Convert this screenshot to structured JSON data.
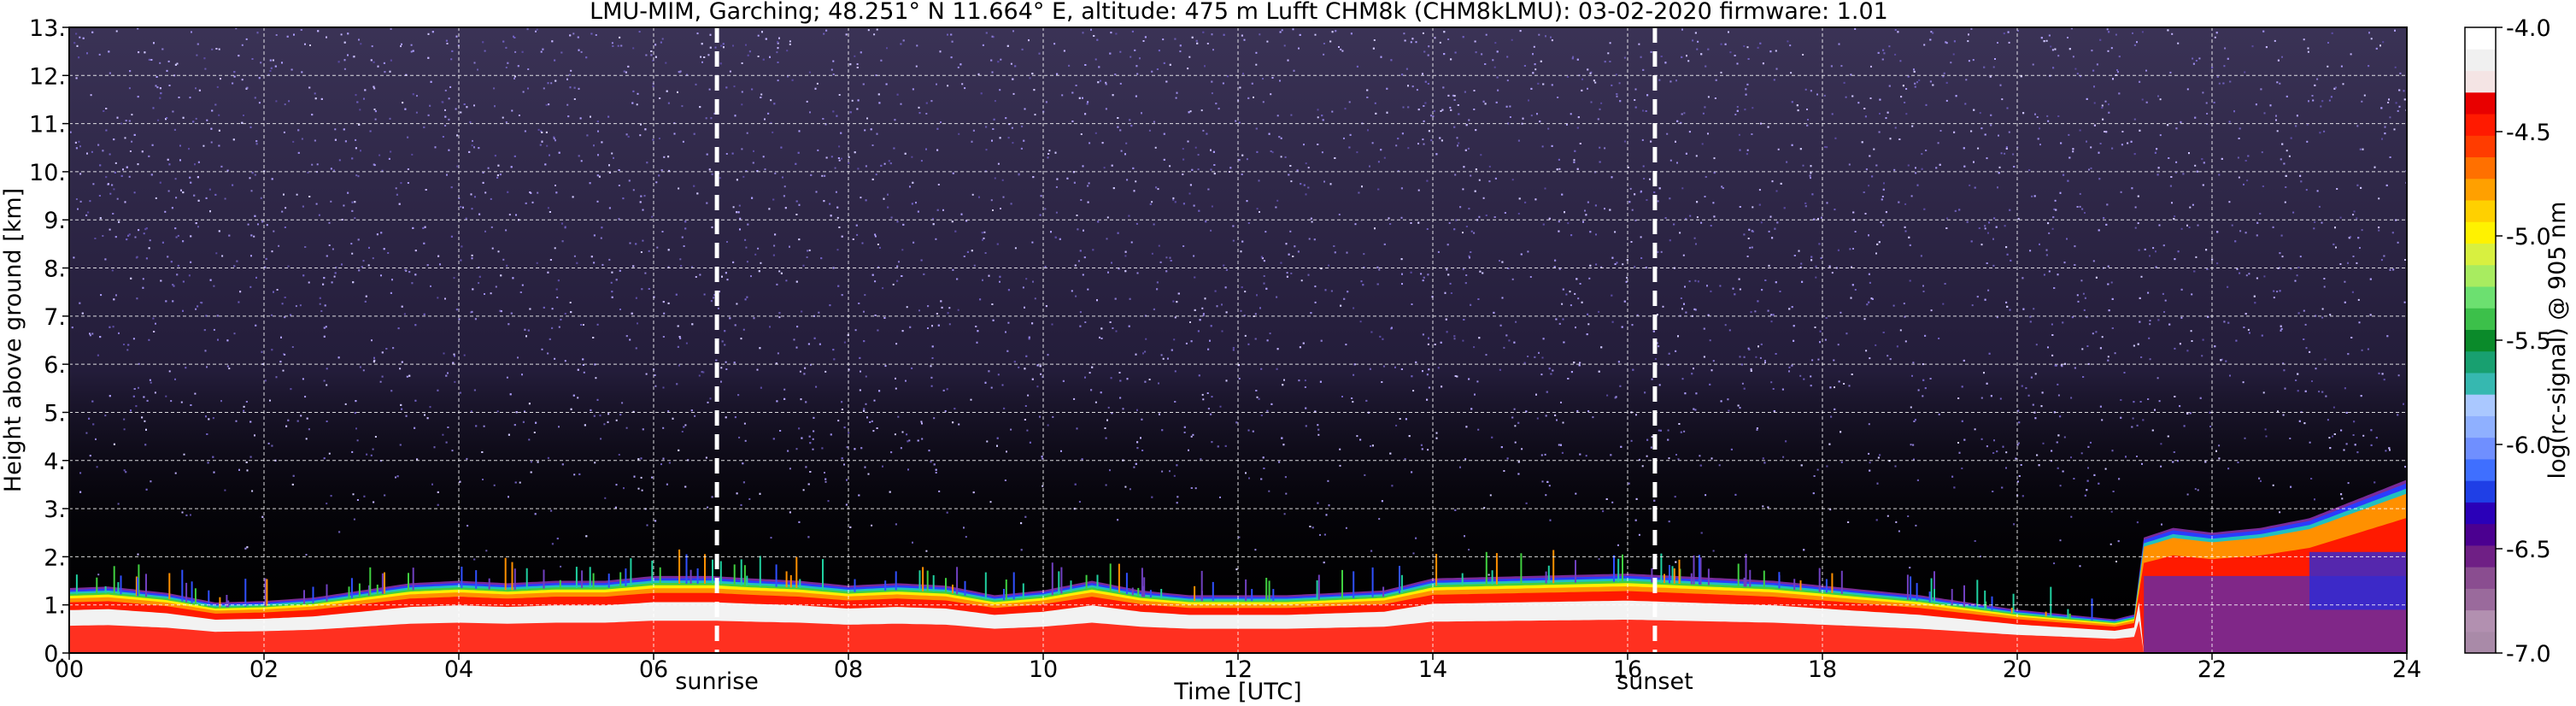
{
  "chart_data": {
    "type": "heatmap",
    "title": "LMU-MIM, Garching; 48.251° N 11.664° E, altitude: 475 m    Lufft CHM8k (CHM8kLMU): 03-02-2020    firmware: 1.01",
    "xlabel": "Time [UTC]",
    "ylabel": "Height above ground [km]",
    "xlim": [
      0,
      24
    ],
    "ylim": [
      0,
      13
    ],
    "x_ticks": [
      "00",
      "02",
      "04",
      "06",
      "08",
      "10",
      "12",
      "14",
      "16",
      "18",
      "20",
      "22",
      "24"
    ],
    "y_ticks": [
      "0.",
      "1.",
      "2.",
      "3.",
      "4.",
      "5.",
      "6.",
      "7.",
      "8.",
      "9.",
      "10.",
      "11.",
      "12.",
      "13."
    ],
    "grid": true,
    "markers": [
      {
        "label": "sunrise",
        "time": 6.65
      },
      {
        "label": "sunset",
        "time": 16.28
      }
    ],
    "colorbar": {
      "label": "log(rc-signal) @ 905 nm",
      "range": [
        -7.0,
        -4.0
      ],
      "ticks": [
        "-4.0",
        "-4.5",
        "-5.0",
        "-5.5",
        "-6.0",
        "-6.5",
        "-7.0"
      ],
      "colors": [
        "#a98aa8",
        "#b290b0",
        "#9a6a9c",
        "#8a4d90",
        "#6f1f85",
        "#4b0090",
        "#2a00b8",
        "#1f3fe6",
        "#3f6fff",
        "#6f8fff",
        "#8fb0ff",
        "#aac8ff",
        "#36b8b0",
        "#18a070",
        "#0a8a2a",
        "#3cc04a",
        "#6ce070",
        "#a8ec60",
        "#d8f040",
        "#fff200",
        "#ffd000",
        "#ffa000",
        "#ff7000",
        "#ff3c00",
        "#ff1a00",
        "#e80000",
        "#f4e4e4",
        "#f0f0f0",
        "#ffffff"
      ]
    },
    "layer_top_km": [
      {
        "t": 0.0,
        "h": 1.35
      },
      {
        "t": 0.4,
        "h": 1.38
      },
      {
        "t": 1.0,
        "h": 1.25
      },
      {
        "t": 1.5,
        "h": 1.05
      },
      {
        "t": 2.0,
        "h": 1.08
      },
      {
        "t": 2.5,
        "h": 1.15
      },
      {
        "t": 3.0,
        "h": 1.3
      },
      {
        "t": 3.5,
        "h": 1.45
      },
      {
        "t": 4.0,
        "h": 1.5
      },
      {
        "t": 4.5,
        "h": 1.45
      },
      {
        "t": 5.0,
        "h": 1.5
      },
      {
        "t": 5.5,
        "h": 1.5
      },
      {
        "t": 6.0,
        "h": 1.6
      },
      {
        "t": 6.6,
        "h": 1.6
      },
      {
        "t": 7.0,
        "h": 1.55
      },
      {
        "t": 7.5,
        "h": 1.5
      },
      {
        "t": 8.0,
        "h": 1.4
      },
      {
        "t": 8.5,
        "h": 1.45
      },
      {
        "t": 9.0,
        "h": 1.4
      },
      {
        "t": 9.5,
        "h": 1.2
      },
      {
        "t": 10.0,
        "h": 1.3
      },
      {
        "t": 10.5,
        "h": 1.5
      },
      {
        "t": 11.0,
        "h": 1.3
      },
      {
        "t": 11.5,
        "h": 1.2
      },
      {
        "t": 12.0,
        "h": 1.2
      },
      {
        "t": 12.5,
        "h": 1.2
      },
      {
        "t": 13.0,
        "h": 1.25
      },
      {
        "t": 13.5,
        "h": 1.3
      },
      {
        "t": 14.0,
        "h": 1.55
      },
      {
        "t": 15.0,
        "h": 1.6
      },
      {
        "t": 16.0,
        "h": 1.65
      },
      {
        "t": 16.5,
        "h": 1.6
      },
      {
        "t": 17.0,
        "h": 1.55
      },
      {
        "t": 17.5,
        "h": 1.5
      },
      {
        "t": 18.0,
        "h": 1.4
      },
      {
        "t": 18.5,
        "h": 1.3
      },
      {
        "t": 19.0,
        "h": 1.2
      },
      {
        "t": 19.5,
        "h": 1.05
      },
      {
        "t": 20.0,
        "h": 0.9
      },
      {
        "t": 20.5,
        "h": 0.8
      },
      {
        "t": 21.0,
        "h": 0.7
      },
      {
        "t": 21.2,
        "h": 0.8
      },
      {
        "t": 21.3,
        "h": 2.4
      },
      {
        "t": 21.6,
        "h": 2.6
      },
      {
        "t": 22.0,
        "h": 2.5
      },
      {
        "t": 22.5,
        "h": 2.6
      },
      {
        "t": 23.0,
        "h": 2.8
      },
      {
        "t": 23.5,
        "h": 3.2
      },
      {
        "t": 24.0,
        "h": 3.6
      }
    ]
  }
}
